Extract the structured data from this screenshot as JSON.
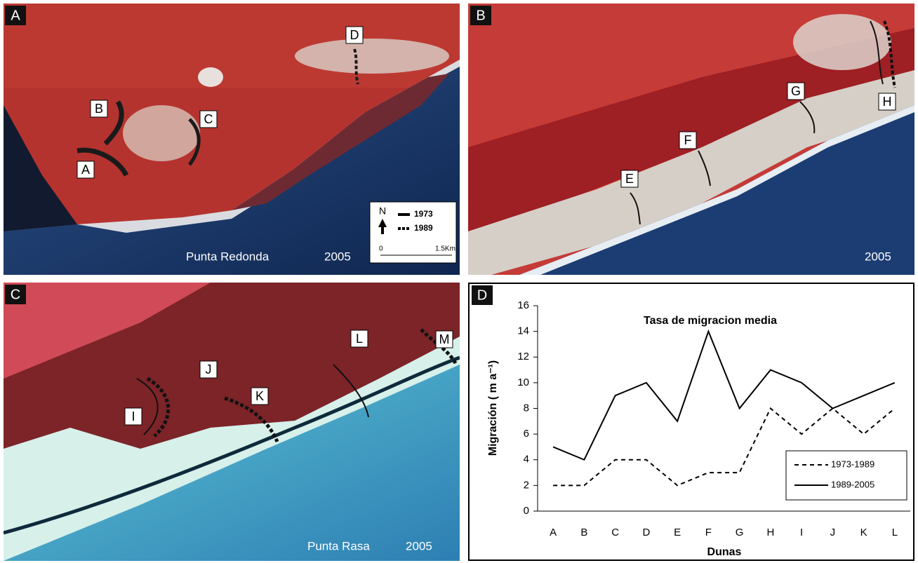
{
  "panels": {
    "a": {
      "letter": "A",
      "dunes": [
        "B",
        "C",
        "A",
        "D"
      ],
      "place": "Punta Redonda",
      "year": "2005",
      "legend": {
        "north": "N",
        "l1": "1973",
        "l2": "1989",
        "s0": "0",
        "s1": "1.5Km"
      }
    },
    "b": {
      "letter": "B",
      "dunes": [
        "E",
        "F",
        "G",
        "H"
      ],
      "year": "2005"
    },
    "c": {
      "letter": "C",
      "dunes": [
        "I",
        "J",
        "K",
        "L",
        "M"
      ],
      "place": "Punta Rasa",
      "year": "2005"
    }
  },
  "chart_data": {
    "type": "line",
    "panel_label": "D",
    "title": "Tasa de migracion media",
    "x_label": "Dunas",
    "y_label": "Migración ( m a⁻¹)",
    "categories": [
      "A",
      "B",
      "C",
      "D",
      "E",
      "F",
      "G",
      "H",
      "I",
      "J",
      "K",
      "L"
    ],
    "series": [
      {
        "name": "1973-1989",
        "color": "#000000",
        "dash": "dashed",
        "values": [
          2,
          2,
          4,
          4,
          2,
          3,
          3,
          8,
          6,
          8,
          6,
          8
        ]
      },
      {
        "name": "1989-2005",
        "color": "#000000",
        "dash": "solid",
        "values": [
          5,
          4,
          9,
          10,
          7,
          14,
          8,
          11,
          10,
          8,
          9,
          10
        ]
      }
    ],
    "ylim": [
      0,
      16
    ],
    "yticks": [
      0,
      2,
      4,
      6,
      8,
      10,
      12,
      14,
      16
    ],
    "legend": "lower right"
  }
}
